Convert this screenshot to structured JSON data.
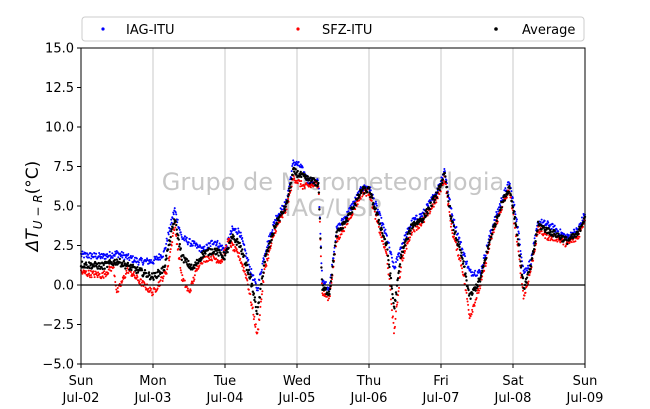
{
  "chart_data": {
    "type": "scatter",
    "title": "",
    "xlabel": "",
    "ylabel": "ΔT",
    "ylabel_sub": "U − R",
    "ylabel_unit": "(°C)",
    "ylim": [
      -5.0,
      15.0
    ],
    "yticks": [
      -5.0,
      -2.5,
      0.0,
      2.5,
      5.0,
      7.5,
      10.0,
      12.5,
      15.0
    ],
    "ytick_labels": [
      "−5.0",
      "−2.5",
      "0.0",
      "2.5",
      "5.0",
      "7.5",
      "10.0",
      "12.5",
      "15.0"
    ],
    "xlim": [
      0,
      7
    ],
    "xticks": [
      {
        "day": "Sun",
        "date": "Jul-02"
      },
      {
        "day": "Mon",
        "date": "Jul-03"
      },
      {
        "day": "Tue",
        "date": "Jul-04"
      },
      {
        "day": "Wed",
        "date": "Jul-05"
      },
      {
        "day": "Thu",
        "date": "Jul-06"
      },
      {
        "day": "Fri",
        "date": "Jul-07"
      },
      {
        "day": "Sat",
        "date": "Jul-08"
      },
      {
        "day": "Sun",
        "date": "Jul-09"
      }
    ],
    "grid": "vertical",
    "zero_line": 0.0,
    "legend_position": "top",
    "watermark_lines": [
      "Grupo de Micrometeorologia",
      "IAG/USP"
    ],
    "series_keypoints": {
      "IAG-ITU": [
        [
          0.0,
          1.9
        ],
        [
          0.3,
          1.8
        ],
        [
          0.5,
          2.0
        ],
        [
          0.8,
          1.5
        ],
        [
          1.0,
          1.5
        ],
        [
          1.15,
          2.0
        ],
        [
          1.3,
          4.8
        ],
        [
          1.4,
          3.0
        ],
        [
          1.55,
          2.6
        ],
        [
          1.7,
          2.2
        ],
        [
          1.85,
          2.8
        ],
        [
          2.0,
          2.2
        ],
        [
          2.1,
          3.5
        ],
        [
          2.2,
          3.4
        ],
        [
          2.35,
          1.0
        ],
        [
          2.45,
          -0.3
        ],
        [
          2.55,
          2.0
        ],
        [
          2.7,
          4.2
        ],
        [
          2.85,
          5.2
        ],
        [
          2.95,
          7.8
        ],
        [
          3.05,
          7.5
        ],
        [
          3.15,
          6.6
        ],
        [
          3.3,
          6.5
        ],
        [
          3.35,
          0.2
        ],
        [
          3.45,
          -0.2
        ],
        [
          3.55,
          3.5
        ],
        [
          3.7,
          4.5
        ],
        [
          3.9,
          6.1
        ],
        [
          4.0,
          6.2
        ],
        [
          4.1,
          5.0
        ],
        [
          4.25,
          3.0
        ],
        [
          4.35,
          1.0
        ],
        [
          4.45,
          2.5
        ],
        [
          4.6,
          4.0
        ],
        [
          4.75,
          4.5
        ],
        [
          4.95,
          6.0
        ],
        [
          5.05,
          7.3
        ],
        [
          5.15,
          4.5
        ],
        [
          5.3,
          2.2
        ],
        [
          5.4,
          0.8
        ],
        [
          5.55,
          0.8
        ],
        [
          5.7,
          3.5
        ],
        [
          5.85,
          5.5
        ],
        [
          5.95,
          6.5
        ],
        [
          6.05,
          4.2
        ],
        [
          6.15,
          0.8
        ],
        [
          6.25,
          1.5
        ],
        [
          6.35,
          4.0
        ],
        [
          6.5,
          3.8
        ],
        [
          6.6,
          3.5
        ],
        [
          6.75,
          3.0
        ],
        [
          6.9,
          3.5
        ],
        [
          7.0,
          4.5
        ]
      ],
      "SFZ-ITU": [
        [
          0.0,
          0.8
        ],
        [
          0.3,
          0.6
        ],
        [
          0.45,
          1.2
        ],
        [
          0.5,
          -0.5
        ],
        [
          0.65,
          1.0
        ],
        [
          0.8,
          0.3
        ],
        [
          1.0,
          -0.5
        ],
        [
          1.1,
          0.2
        ],
        [
          1.2,
          1.0
        ],
        [
          1.3,
          3.8
        ],
        [
          1.4,
          0.5
        ],
        [
          1.5,
          -0.5
        ],
        [
          1.65,
          1.5
        ],
        [
          1.8,
          1.8
        ],
        [
          1.95,
          1.5
        ],
        [
          2.05,
          2.8
        ],
        [
          2.2,
          1.8
        ],
        [
          2.3,
          0.5
        ],
        [
          2.45,
          -3.2
        ],
        [
          2.55,
          1.0
        ],
        [
          2.7,
          3.5
        ],
        [
          2.85,
          4.8
        ],
        [
          2.95,
          6.8
        ],
        [
          3.1,
          6.2
        ],
        [
          3.3,
          6.4
        ],
        [
          3.35,
          -0.5
        ],
        [
          3.45,
          -0.8
        ],
        [
          3.55,
          2.8
        ],
        [
          3.7,
          4.0
        ],
        [
          3.9,
          5.8
        ],
        [
          4.0,
          5.9
        ],
        [
          4.1,
          4.2
        ],
        [
          4.25,
          1.8
        ],
        [
          4.35,
          -3.0
        ],
        [
          4.45,
          1.5
        ],
        [
          4.6,
          3.5
        ],
        [
          4.75,
          4.0
        ],
        [
          4.95,
          5.5
        ],
        [
          5.05,
          6.8
        ],
        [
          5.15,
          3.5
        ],
        [
          5.3,
          1.0
        ],
        [
          5.4,
          -2.0
        ],
        [
          5.55,
          0.0
        ],
        [
          5.7,
          3.0
        ],
        [
          5.85,
          5.0
        ],
        [
          5.95,
          6.0
        ],
        [
          6.05,
          3.0
        ],
        [
          6.15,
          -0.8
        ],
        [
          6.25,
          1.0
        ],
        [
          6.35,
          3.5
        ],
        [
          6.5,
          3.0
        ],
        [
          6.6,
          3.0
        ],
        [
          6.75,
          2.6
        ],
        [
          6.9,
          3.0
        ],
        [
          7.0,
          4.2
        ]
      ],
      "Average": [
        [
          0.0,
          1.3
        ],
        [
          0.3,
          1.2
        ],
        [
          0.5,
          1.5
        ],
        [
          0.8,
          0.9
        ],
        [
          1.0,
          0.5
        ],
        [
          1.15,
          1.0
        ],
        [
          1.3,
          4.2
        ],
        [
          1.4,
          1.8
        ],
        [
          1.55,
          1.0
        ],
        [
          1.7,
          2.0
        ],
        [
          1.85,
          2.2
        ],
        [
          2.0,
          1.8
        ],
        [
          2.1,
          3.0
        ],
        [
          2.2,
          2.6
        ],
        [
          2.35,
          0.5
        ],
        [
          2.45,
          -1.8
        ],
        [
          2.55,
          1.5
        ],
        [
          2.7,
          3.8
        ],
        [
          2.85,
          5.0
        ],
        [
          2.95,
          7.2
        ],
        [
          3.1,
          6.8
        ],
        [
          3.3,
          6.4
        ],
        [
          3.35,
          -0.2
        ],
        [
          3.45,
          -0.5
        ],
        [
          3.55,
          3.2
        ],
        [
          3.7,
          4.2
        ],
        [
          3.9,
          6.0
        ],
        [
          4.0,
          6.0
        ],
        [
          4.1,
          4.6
        ],
        [
          4.25,
          2.4
        ],
        [
          4.35,
          -1.5
        ],
        [
          4.45,
          2.0
        ],
        [
          4.6,
          3.8
        ],
        [
          4.75,
          4.2
        ],
        [
          4.95,
          5.8
        ],
        [
          5.05,
          7.0
        ],
        [
          5.15,
          4.0
        ],
        [
          5.3,
          1.6
        ],
        [
          5.4,
          -0.8
        ],
        [
          5.55,
          0.4
        ],
        [
          5.7,
          3.2
        ],
        [
          5.85,
          5.2
        ],
        [
          5.95,
          6.2
        ],
        [
          6.05,
          3.6
        ],
        [
          6.15,
          -0.2
        ],
        [
          6.25,
          1.2
        ],
        [
          6.35,
          3.8
        ],
        [
          6.5,
          3.4
        ],
        [
          6.6,
          3.2
        ],
        [
          6.75,
          2.8
        ],
        [
          6.9,
          3.2
        ],
        [
          7.0,
          4.4
        ]
      ]
    },
    "series": [
      {
        "name": "IAG-ITU",
        "color": "#0000ff"
      },
      {
        "name": "SFZ-ITU",
        "color": "#ff0000"
      },
      {
        "name": "Average",
        "color": "#000000"
      }
    ]
  }
}
